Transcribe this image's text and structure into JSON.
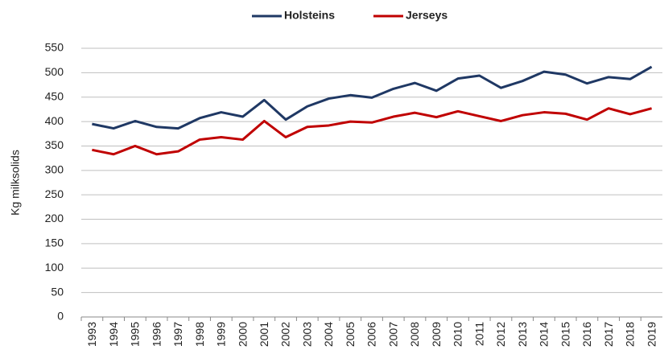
{
  "chart_data": {
    "type": "line",
    "y_label": "Kg milksolids",
    "categories": [
      "1993",
      "1994",
      "1995",
      "1996",
      "1997",
      "1998",
      "1999",
      "2000",
      "2001",
      "2002",
      "2003",
      "2004",
      "2005",
      "2006",
      "2007",
      "2008",
      "2009",
      "2010",
      "2011",
      "2012",
      "2013",
      "2014",
      "2015",
      "2016",
      "2017",
      "2018",
      "2019"
    ],
    "series": [
      {
        "name": "Holsteins",
        "color": "#1f3864",
        "values": [
          395,
          386,
          401,
          389,
          386,
          407,
          419,
          410,
          444,
          404,
          431,
          447,
          454,
          449,
          467,
          479,
          463,
          488,
          494,
          469,
          483,
          502,
          496,
          478,
          491,
          487,
          512
        ]
      },
      {
        "name": "Jerseys",
        "color": "#c00000",
        "values": [
          342,
          333,
          350,
          333,
          339,
          363,
          368,
          363,
          401,
          368,
          389,
          392,
          400,
          398,
          410,
          418,
          409,
          421,
          411,
          401,
          413,
          419,
          416,
          404,
          427,
          415,
          427
        ]
      }
    ],
    "ylim": [
      0,
      550
    ],
    "yticks": [
      0,
      50,
      100,
      150,
      200,
      250,
      300,
      350,
      400,
      450,
      500,
      550
    ],
    "grid": true,
    "legend": "top"
  }
}
